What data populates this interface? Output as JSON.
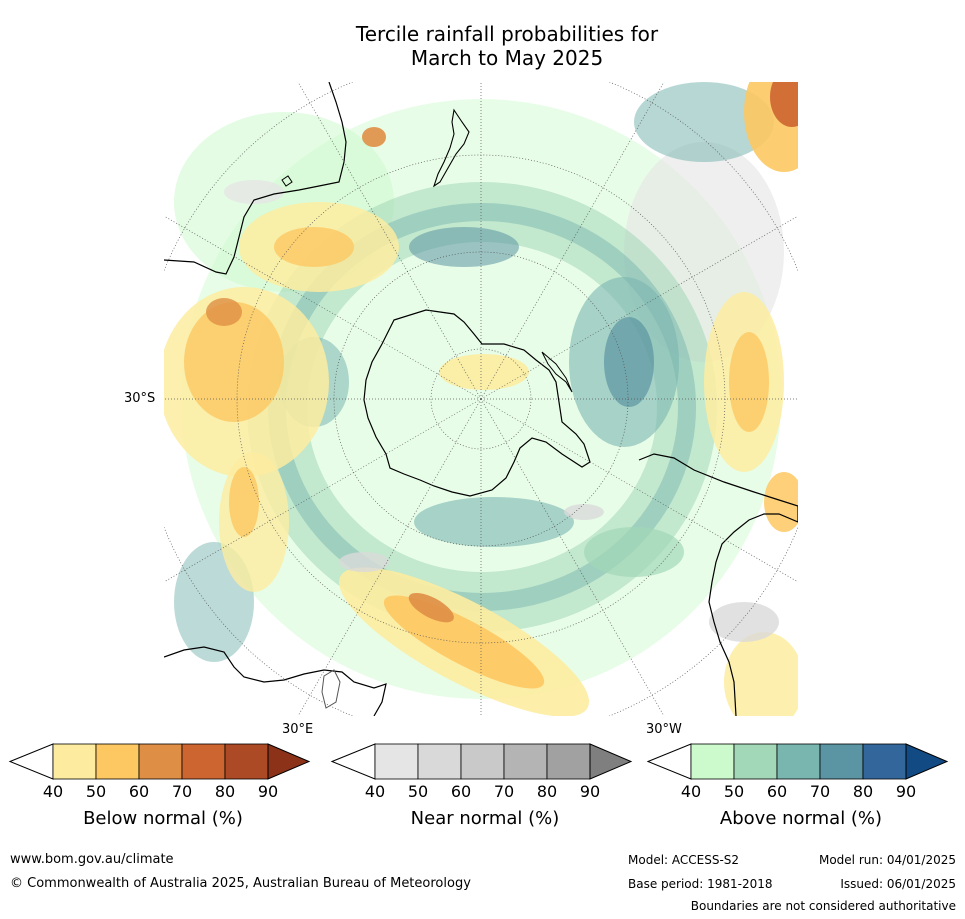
{
  "title": {
    "line1": "Tercile rainfall probabilities for",
    "line2": "March to May 2025"
  },
  "map": {
    "projection": "south-polar stereographic",
    "labels": {
      "lat_30s": "30°S",
      "lon_30e": "30°E",
      "lon_30w": "30°W"
    }
  },
  "colorbars": [
    {
      "title": "Below normal (%)",
      "ticks": [
        "40",
        "50",
        "60",
        "70",
        "80",
        "90"
      ],
      "colors": [
        "#ffffff",
        "#fdeca0",
        "#fdc862",
        "#df8f45",
        "#cd6531",
        "#ad4a26",
        "#8c3218"
      ]
    },
    {
      "title": "Near normal (%)",
      "ticks": [
        "40",
        "50",
        "60",
        "70",
        "80",
        "90"
      ],
      "colors": [
        "#ffffff",
        "#e5e5e5",
        "#d9d9d9",
        "#c9c9c9",
        "#b4b4b4",
        "#a1a1a1",
        "#7f7f7f"
      ]
    },
    {
      "title": "Above normal (%)",
      "ticks": [
        "40",
        "50",
        "60",
        "70",
        "80",
        "90"
      ],
      "colors": [
        "#ffffff",
        "#ccfacc",
        "#a2d7b8",
        "#7ab6b0",
        "#5b94a2",
        "#33679b",
        "#124a84"
      ]
    }
  ],
  "footer": {
    "website": "www.bom.gov.au/climate",
    "copyright": "© Commonwealth of Australia 2025, Australian Bureau of Meteorology",
    "model": "Model: ACCESS-S2",
    "base_period": "Base period: 1981-2018",
    "model_run": "Model run: 04/01/2025",
    "issued": "Issued: 06/01/2025",
    "disclaimer": "Boundaries are not considered authoritative"
  }
}
